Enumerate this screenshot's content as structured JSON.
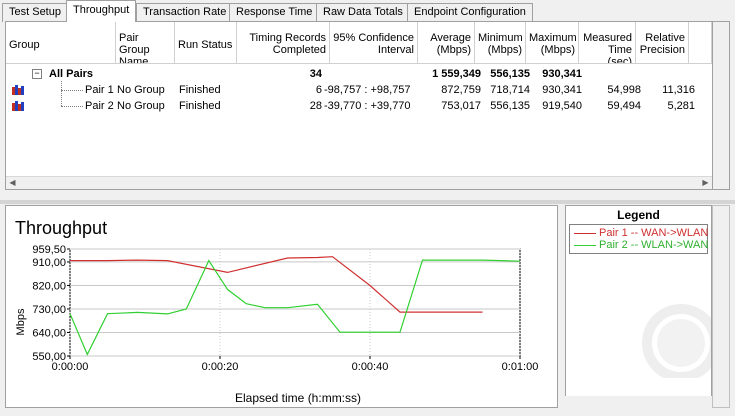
{
  "tabs": [
    {
      "label": "Test Setup"
    },
    {
      "label": "Throughput",
      "active": true
    },
    {
      "label": "Transaction Rate"
    },
    {
      "label": "Response Time"
    },
    {
      "label": "Raw Data Totals"
    },
    {
      "label": "Endpoint Configuration"
    }
  ],
  "table": {
    "columns": [
      {
        "label": "Group"
      },
      {
        "label": "Pair Group Name"
      },
      {
        "label": "Run Status"
      },
      {
        "label": "Timing Records Completed"
      },
      {
        "label": "95% Confidence Interval"
      },
      {
        "label": "Average (Mbps)"
      },
      {
        "label": "Minimum (Mbps)"
      },
      {
        "label": "Maximum (Mbps)"
      },
      {
        "label": "Measured Time (sec)"
      },
      {
        "label": "Relative Precision"
      }
    ],
    "summary": {
      "label": "All Pairs",
      "expander": "−",
      "records": "34",
      "average": "1 559,349",
      "minimum": "556,135",
      "maximum": "930,341"
    },
    "pairs": [
      {
        "name": "Pair 1",
        "group": "No Group",
        "status": "Finished",
        "records": "6",
        "ci": "-98,757 : +98,757",
        "average": "872,759",
        "minimum": "718,714",
        "maximum": "930,341",
        "time": "54,998",
        "precision": "11,316"
      },
      {
        "name": "Pair 2",
        "group": "No Group",
        "status": "Finished",
        "records": "28",
        "ci": "-39,770 : +39,770",
        "average": "753,017",
        "minimum": "556,135",
        "maximum": "919,540",
        "time": "59,494",
        "precision": "5,281"
      }
    ]
  },
  "chart_data": {
    "type": "line",
    "title": "Throughput",
    "xlabel": "Elapsed time (h:mm:ss)",
    "ylabel": "Mbps",
    "xlim": [
      0,
      60
    ],
    "ylim": [
      550,
      959.5
    ],
    "yticks": [
      "550,00",
      "640,00",
      "730,00",
      "820,00",
      "910,00",
      "959,50"
    ],
    "ytick_values": [
      550,
      640,
      730,
      820,
      910,
      959.5
    ],
    "xticks": [
      "0:00:00",
      "0:00:20",
      "0:00:40",
      "0:01:00"
    ],
    "xtick_values": [
      0,
      20,
      40,
      60
    ],
    "grid": true,
    "series": [
      {
        "name": "Pair 1 -- WAN->WLAN",
        "color": "#d03030",
        "x": [
          0,
          5,
          9,
          13,
          21,
          29,
          33,
          35,
          40,
          44,
          50,
          55
        ],
        "y": [
          915,
          915,
          917,
          915,
          870,
          925,
          927,
          930,
          820,
          718,
          718,
          718
        ]
      },
      {
        "name": "Pair 2 -- WLAN->WAN",
        "color": "#30d030",
        "x": [
          0,
          2.3,
          5,
          9,
          13,
          15.5,
          18.5,
          21,
          23.5,
          26,
          29,
          33,
          36,
          40,
          44,
          47,
          55,
          60
        ],
        "y": [
          712,
          556,
          712,
          717,
          711,
          730,
          915,
          805,
          750,
          735,
          735,
          748,
          641,
          641,
          641,
          917,
          917,
          913
        ]
      }
    ]
  },
  "legend": {
    "title": "Legend",
    "items": [
      {
        "label": "Pair 1 -- WAN->WLAN",
        "color": "#d03030"
      },
      {
        "label": "Pair 2 -- WLAN->WAN",
        "color": "#30d030"
      }
    ]
  },
  "colors": {
    "pair_icon_red": "#c03020",
    "pair_icon_blue": "#2040c0"
  }
}
